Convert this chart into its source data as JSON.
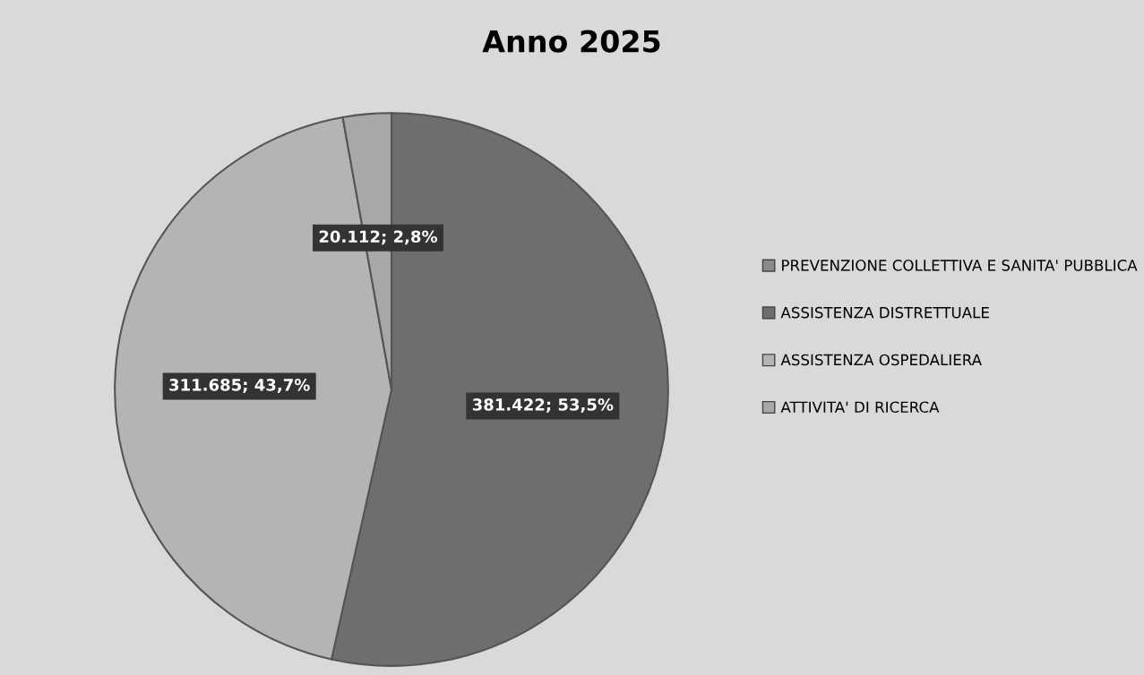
{
  "chart_data": {
    "type": "pie",
    "title": "Anno 2025",
    "categories": [
      "PREVENZIONE COLLETTIVA E SANITA' PUBBLICA",
      "ASSISTENZA DISTRETTUALE",
      "ASSISTENZA OSPEDALIERA",
      "ATTIVITA' DI RICERCA"
    ],
    "values": [
      0,
      381422,
      311685,
      20112
    ],
    "colors": [
      "#8a8a8a",
      "#6e6e6e",
      "#b4b4b4",
      "#a8a8a8"
    ],
    "value_labels": [
      null,
      "381.422; 53,5%",
      "311.685; 43,7%",
      "20.112; 2,8%"
    ],
    "legend": "right"
  }
}
